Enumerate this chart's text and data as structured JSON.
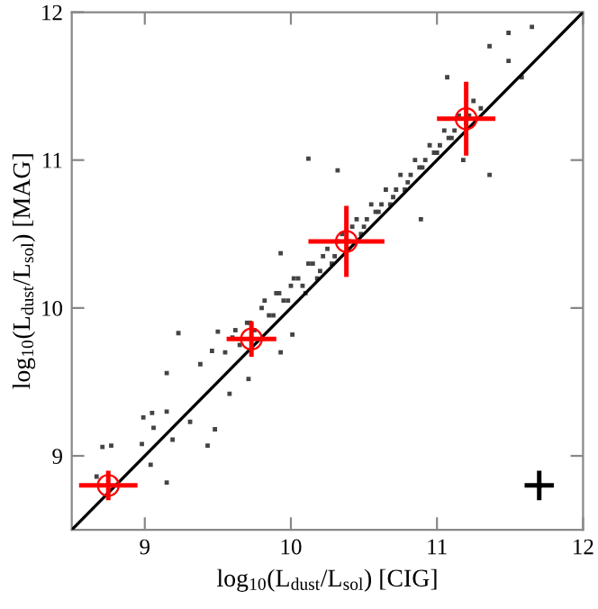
{
  "chart_data": {
    "type": "scatter",
    "xlabel": "log$_{10}$(L$_{dust}$/L$_{sol}$) [CIG]",
    "ylabel": "log$_{10}$(L$_{dust}$/L$_{sol}$) [MAG]",
    "xlim": [
      8.5,
      12
    ],
    "ylim": [
      8.5,
      12
    ],
    "xticks": [
      9,
      10,
      11,
      12
    ],
    "yticks": [
      9,
      10,
      11,
      12
    ],
    "grid": false,
    "series": [
      {
        "color": "#444444",
        "marker": "square",
        "x": [
          11.65,
          11.49,
          11.36,
          11.49,
          11.07,
          11.58,
          10.12,
          10.32,
          11.36,
          10.89,
          9.93,
          11.18,
          9.23,
          9.15,
          9.05,
          9.15,
          8.99,
          9.06,
          9.31,
          9.48,
          9.43,
          9.19,
          8.71,
          8.77,
          8.98,
          9.04,
          9.15,
          8.67,
          9.58,
          9.71,
          9.38,
          9.46,
          9.5,
          10.01,
          9.93,
          9.55,
          9.6,
          9.65,
          9.7,
          9.75,
          9.8,
          9.85,
          9.9,
          9.95,
          10.0,
          10.05,
          10.1,
          10.15,
          10.2,
          10.25,
          10.3,
          10.35,
          10.4,
          10.45,
          10.5,
          10.55,
          10.6,
          10.65,
          10.7,
          10.75,
          10.8,
          10.85,
          10.9,
          10.95,
          11.0,
          11.05,
          11.1,
          11.15,
          11.2,
          11.25,
          11.3,
          9.62,
          9.72,
          9.82,
          9.92,
          10.02,
          10.12,
          10.22,
          10.32,
          10.42,
          10.52,
          10.62,
          10.72,
          10.82,
          10.92,
          11.02,
          11.12,
          11.22,
          9.88,
          9.98,
          10.08,
          10.18,
          10.28,
          10.48,
          10.58,
          10.68,
          10.78,
          10.88,
          10.98,
          11.08
        ],
        "values": [
          11.9,
          11.86,
          11.77,
          11.67,
          11.56,
          11.56,
          11.01,
          10.93,
          10.9,
          10.6,
          10.37,
          11.0,
          9.83,
          9.56,
          9.29,
          9.3,
          9.26,
          9.19,
          9.23,
          9.18,
          9.07,
          9.11,
          9.06,
          9.07,
          9.08,
          8.94,
          8.82,
          8.86,
          9.42,
          9.52,
          9.62,
          9.71,
          9.84,
          9.82,
          9.7,
          9.7,
          9.8,
          9.75,
          9.9,
          9.85,
          10.0,
          9.95,
          10.1,
          10.05,
          10.15,
          10.2,
          10.1,
          10.3,
          10.25,
          10.4,
          10.35,
          10.5,
          10.45,
          10.6,
          10.55,
          10.7,
          10.65,
          10.8,
          10.75,
          10.9,
          10.85,
          11.0,
          10.95,
          11.1,
          11.05,
          11.2,
          11.15,
          11.3,
          11.25,
          11.4,
          11.35,
          9.85,
          9.9,
          10.05,
          10.1,
          10.2,
          10.3,
          10.35,
          10.45,
          10.55,
          10.6,
          10.7,
          10.8,
          10.9,
          11.0,
          11.1,
          11.2,
          11.3,
          9.95,
          10.05,
          10.15,
          10.2,
          10.3,
          10.5,
          10.65,
          10.7,
          10.8,
          10.95,
          11.05,
          11.15
        ]
      },
      {
        "type": "line",
        "color": "#000000",
        "marker": "none",
        "line_style": "solid",
        "x": [
          8.5,
          12
        ],
        "values": [
          8.5,
          12
        ]
      },
      {
        "type": "scatter",
        "color": "#ff0000",
        "marker": "circle",
        "x": [
          8.75,
          9.73,
          10.38,
          11.2
        ],
        "values": [
          8.8,
          9.79,
          10.45,
          11.28
        ],
        "xerrors": [
          0.2,
          0.17,
          0.26,
          0.2
        ],
        "errors": [
          0.1,
          0.12,
          0.24,
          0.25
        ]
      },
      {
        "type": "scatter",
        "color": "#000000",
        "marker": "square",
        "x": [
          11.7
        ],
        "values": [
          8.8
        ],
        "xerrors": [
          0.1
        ],
        "errors": [
          0.1
        ]
      }
    ]
  }
}
